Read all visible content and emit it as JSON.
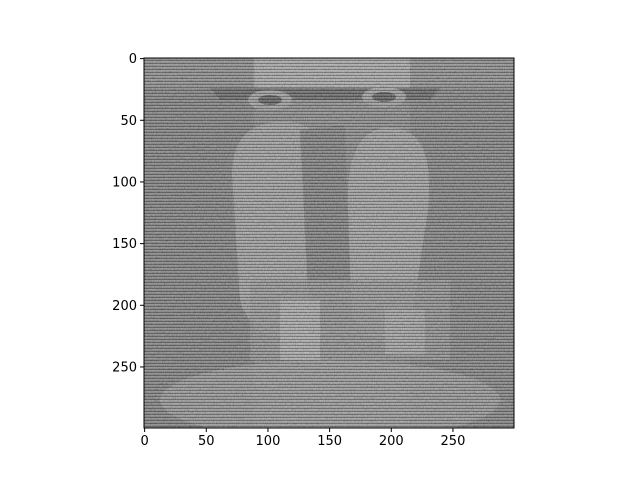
{
  "chart_data": {
    "type": "heatmap",
    "title": "",
    "xlabel": "",
    "ylabel": "",
    "colormap": "gray",
    "image_size": [
      300,
      300
    ],
    "xlim": [
      -0.5,
      299.5
    ],
    "ylim": [
      299.5,
      -0.5
    ],
    "x_ticks": [
      0,
      50,
      100,
      150,
      200,
      250
    ],
    "y_ticks": [
      0,
      50,
      100,
      150,
      200,
      250
    ],
    "x_tick_labels": [
      "0",
      "50",
      "100",
      "150",
      "200",
      "250"
    ],
    "y_tick_labels": [
      "0",
      "50",
      "100",
      "150",
      "200",
      "250"
    ],
    "grid": false,
    "image_description": "noisy grayscale image with horizontal scanline artifacts showing a large dark ornate structure with two tall rounded towers over a base of smaller buildings"
  }
}
